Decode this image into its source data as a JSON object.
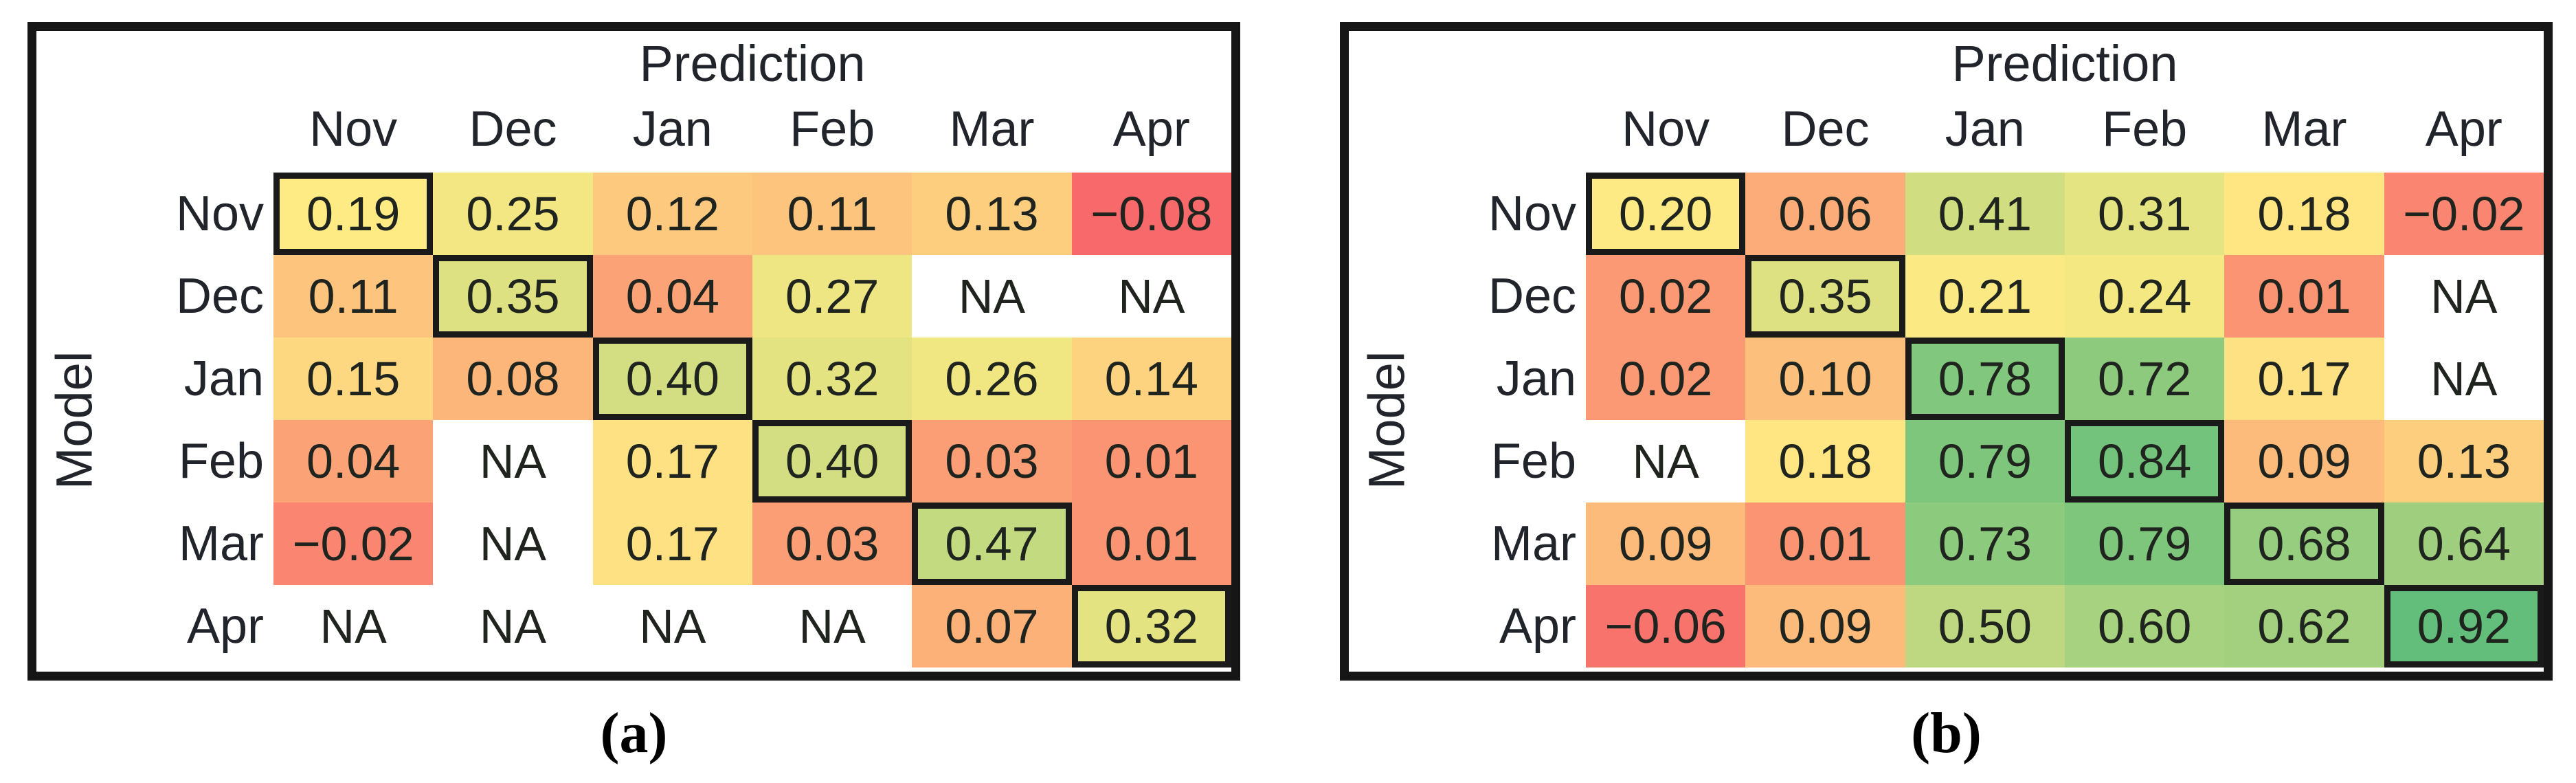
{
  "figure": {
    "background": "#ffffff",
    "panel_border_color": "#161616",
    "diagonal_box_color": "#1a1a1a",
    "text_color": "#21242b",
    "captions": [
      "(a)",
      "(b)"
    ],
    "colormap": {
      "min": -0.08,
      "mid": 0.19,
      "max": 0.92,
      "min_color": "#F8696B",
      "mid_color": "#FFEB84",
      "max_color": "#63BE7B",
      "na_color": "#FFFFFF"
    }
  },
  "chart_data": [
    {
      "type": "heatmap",
      "panel": "(a)",
      "title": "Prediction",
      "ylabel": "Model",
      "x": [
        "Nov",
        "Dec",
        "Jan",
        "Feb",
        "Mar",
        "Apr"
      ],
      "y": [
        "Nov",
        "Dec",
        "Jan",
        "Feb",
        "Mar",
        "Apr"
      ],
      "values": [
        [
          0.19,
          0.25,
          0.12,
          0.11,
          0.13,
          -0.08
        ],
        [
          0.11,
          0.35,
          0.04,
          0.27,
          null,
          null
        ],
        [
          0.15,
          0.08,
          0.4,
          0.32,
          0.26,
          0.14
        ],
        [
          0.04,
          null,
          0.17,
          0.4,
          0.03,
          0.01
        ],
        [
          -0.02,
          null,
          0.17,
          0.03,
          0.47,
          0.01
        ],
        [
          null,
          null,
          null,
          null,
          0.07,
          0.32
        ]
      ],
      "cell_labels": [
        [
          "0.19",
          "0.25",
          "0.12",
          "0.11",
          "0.13",
          "−0.08"
        ],
        [
          "0.11",
          "0.35",
          "0.04",
          "0.27",
          "NA",
          "NA"
        ],
        [
          "0.15",
          "0.08",
          "0.40",
          "0.32",
          "0.26",
          "0.14"
        ],
        [
          "0.04",
          "NA",
          "0.17",
          "0.40",
          "0.03",
          "0.01"
        ],
        [
          "−0.02",
          "NA",
          "0.17",
          "0.03",
          "0.47",
          "0.01"
        ],
        [
          "NA",
          "NA",
          "NA",
          "NA",
          "0.07",
          "0.32"
        ]
      ],
      "diagonal_outlined": true,
      "legend_position": "none",
      "grid": false
    },
    {
      "type": "heatmap",
      "panel": "(b)",
      "title": "Prediction",
      "ylabel": "Model",
      "x": [
        "Nov",
        "Dec",
        "Jan",
        "Feb",
        "Mar",
        "Apr"
      ],
      "y": [
        "Nov",
        "Dec",
        "Jan",
        "Feb",
        "Mar",
        "Apr"
      ],
      "values": [
        [
          0.2,
          0.06,
          0.41,
          0.31,
          0.18,
          -0.02
        ],
        [
          0.02,
          0.35,
          0.21,
          0.24,
          0.01,
          null
        ],
        [
          0.02,
          0.1,
          0.78,
          0.72,
          0.17,
          null
        ],
        [
          null,
          0.18,
          0.79,
          0.84,
          0.09,
          0.13
        ],
        [
          0.09,
          0.01,
          0.73,
          0.79,
          0.68,
          0.64
        ],
        [
          -0.06,
          0.09,
          0.5,
          0.6,
          0.62,
          0.92
        ]
      ],
      "cell_labels": [
        [
          "0.20",
          "0.06",
          "0.41",
          "0.31",
          "0.18",
          "−0.02"
        ],
        [
          "0.02",
          "0.35",
          "0.21",
          "0.24",
          "0.01",
          "NA"
        ],
        [
          "0.02",
          "0.10",
          "0.78",
          "0.72",
          "0.17",
          "NA"
        ],
        [
          "NA",
          "0.18",
          "0.79",
          "0.84",
          "0.09",
          "0.13"
        ],
        [
          "0.09",
          "0.01",
          "0.73",
          "0.79",
          "0.68",
          "0.64"
        ],
        [
          "−0.06",
          "0.09",
          "0.50",
          "0.60",
          "0.62",
          "0.92"
        ]
      ],
      "diagonal_outlined": true,
      "legend_position": "none",
      "grid": false
    }
  ]
}
